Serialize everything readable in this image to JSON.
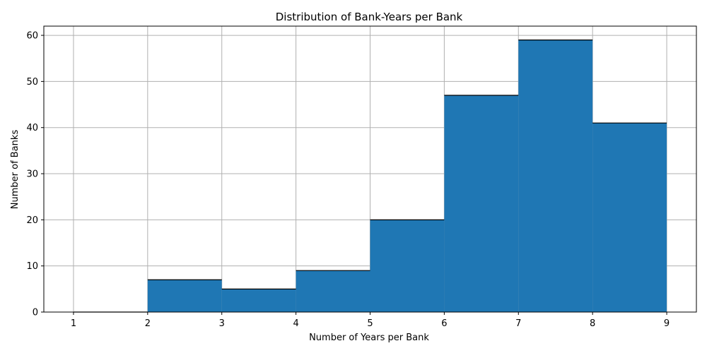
{
  "chart_data": {
    "type": "bar",
    "subtype": "histogram",
    "title": "Distribution of Bank-Years per Bank",
    "xlabel": "Number of Years per Bank",
    "ylabel": "Number of Banks",
    "bin_edges": [
      1,
      2,
      3,
      4,
      5,
      6,
      7,
      8,
      9
    ],
    "values": [
      0,
      7,
      5,
      9,
      20,
      47,
      59,
      41
    ],
    "xlim": [
      0.6,
      9.4
    ],
    "ylim": [
      0,
      62
    ],
    "xticks": [
      1,
      2,
      3,
      4,
      5,
      6,
      7,
      8,
      9
    ],
    "yticks": [
      0,
      10,
      20,
      30,
      40,
      50,
      60
    ],
    "grid": true,
    "bar_color": "#1f77b4",
    "edge_color": "#000000",
    "grid_color": "#b0b0b0"
  }
}
